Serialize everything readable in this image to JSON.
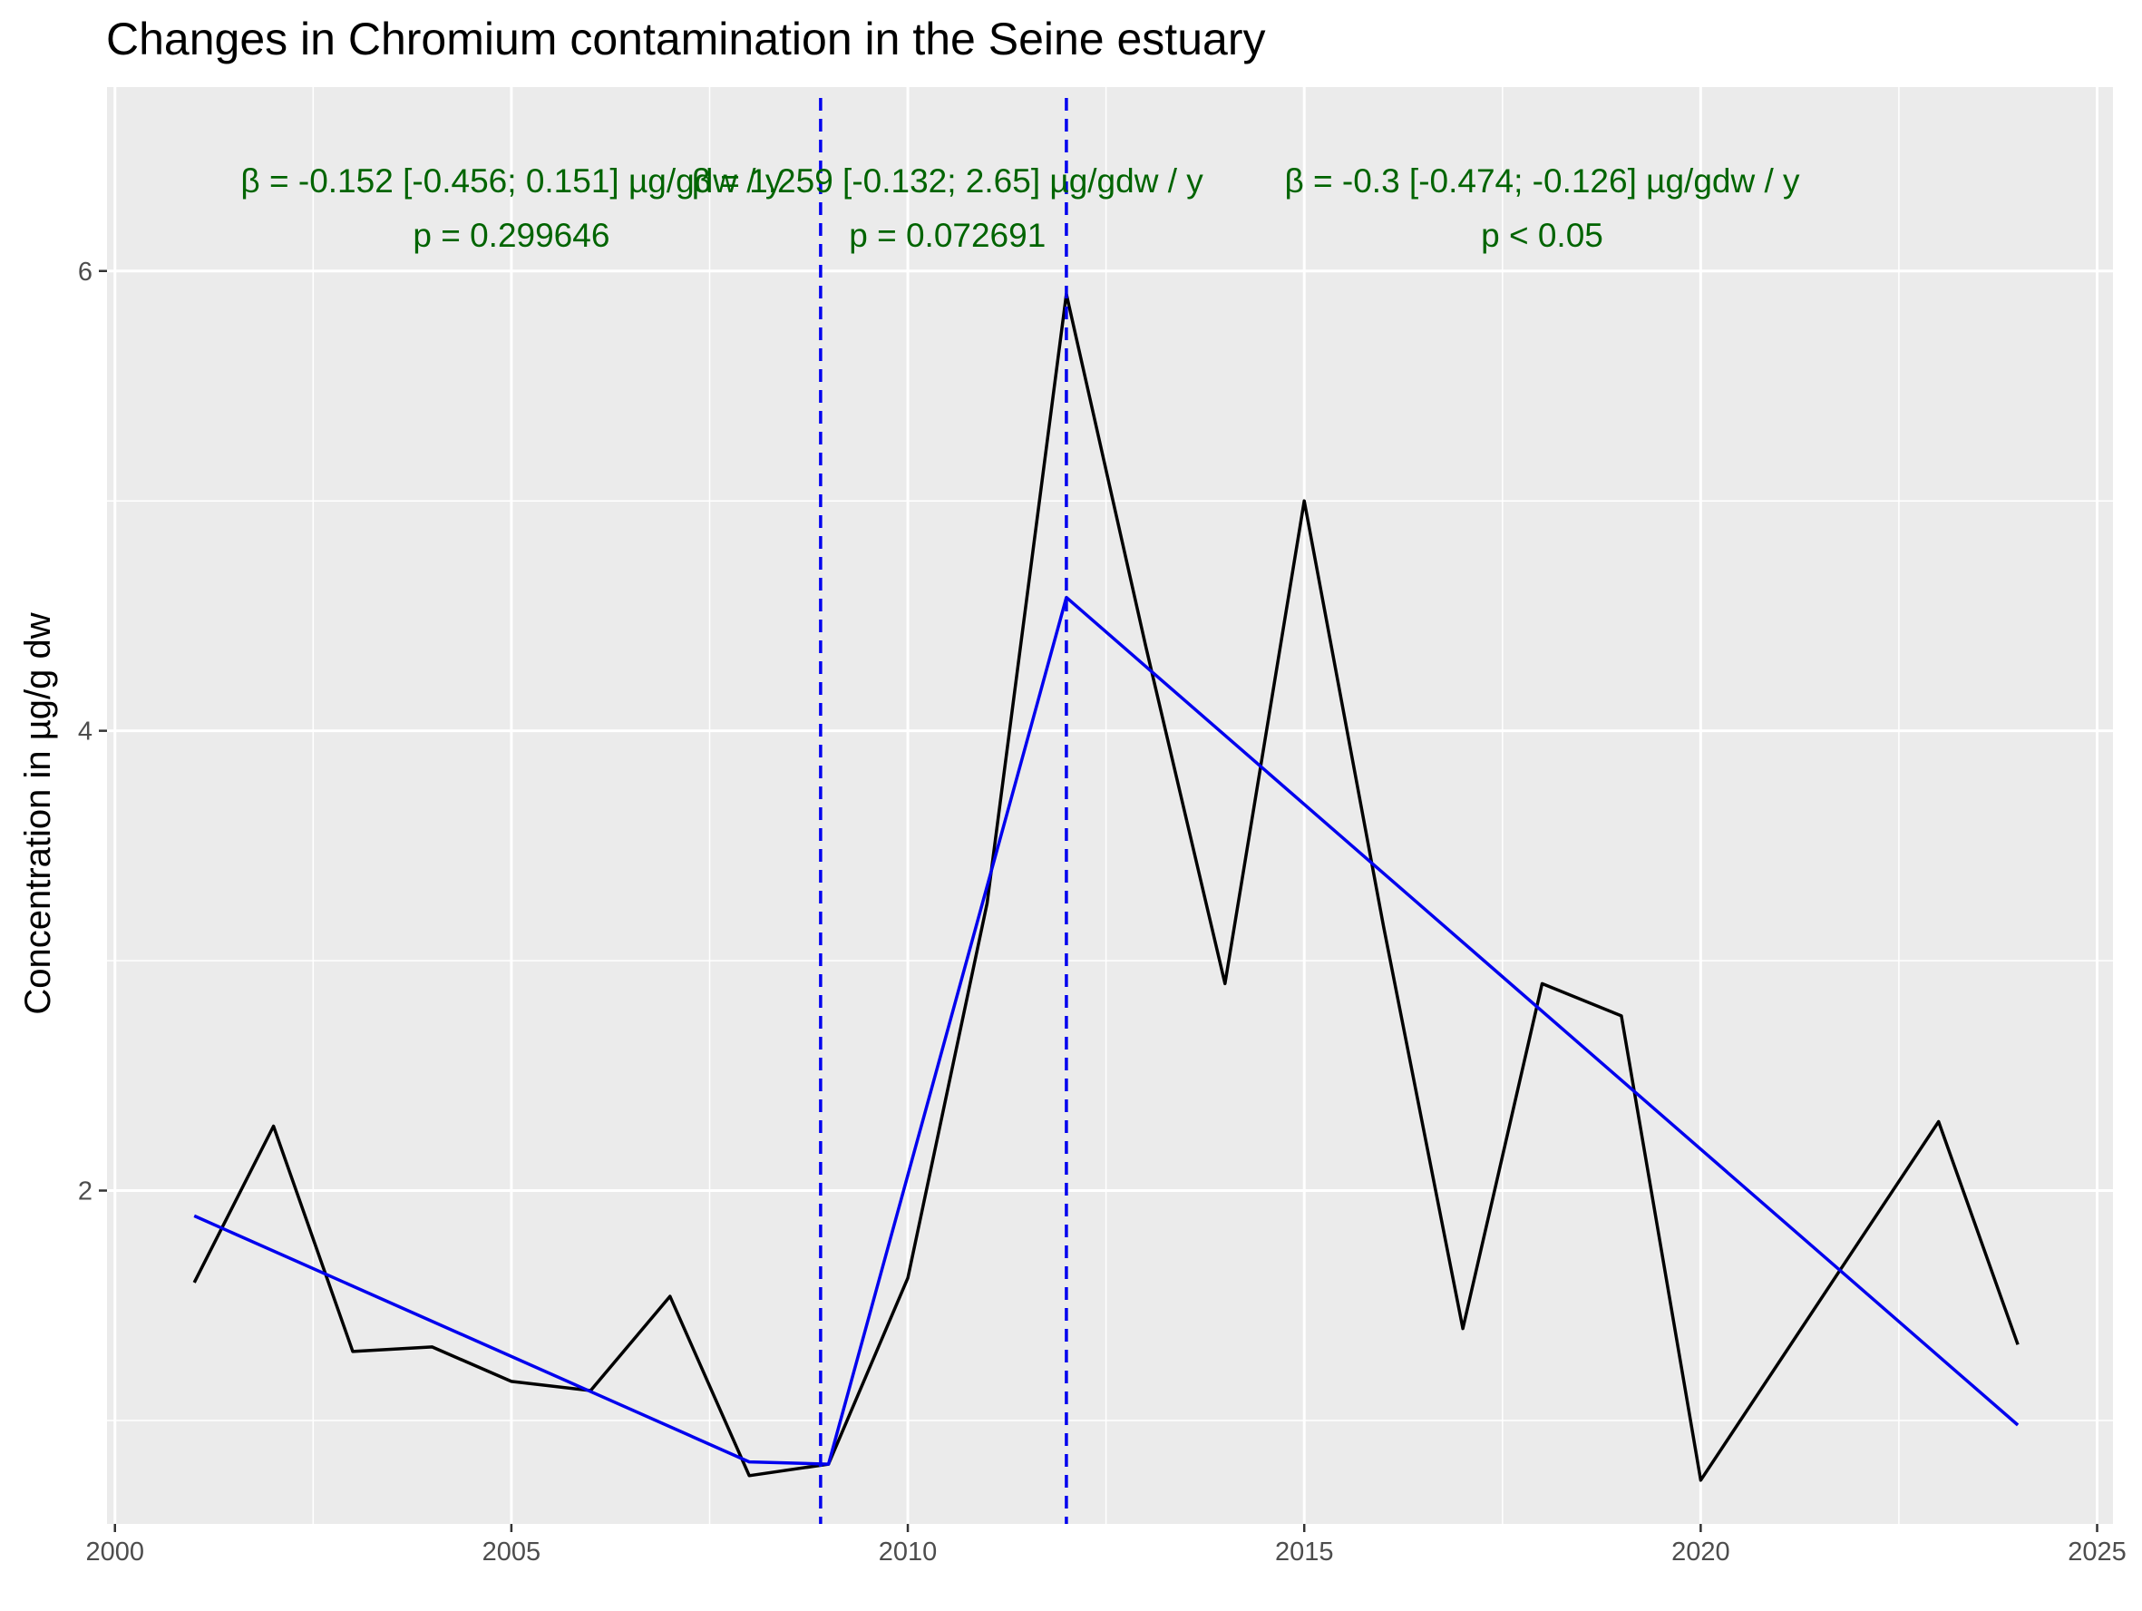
{
  "chart_data": {
    "type": "line",
    "title": "Changes in Chromium contamination in the Seine estuary",
    "xlabel": "",
    "ylabel": "Concentration in µg/g dw",
    "xlim": [
      1999.9,
      2025.2
    ],
    "ylim": [
      0.55,
      6.8
    ],
    "x_ticks": [
      2000,
      2005,
      2010,
      2015,
      2020,
      2025
    ],
    "y_ticks": [
      2,
      4,
      6
    ],
    "grid": true,
    "legend": "none",
    "series": [
      {
        "color": "#000000",
        "x": [
          2001,
          2002,
          2003,
          2004,
          2005,
          2006,
          2007,
          2008,
          2009,
          2010,
          2011,
          2012,
          2013,
          2014,
          2015,
          2016,
          2017,
          2018,
          2019,
          2020,
          2021,
          2022,
          2023,
          2024
        ],
        "y": [
          1.6,
          2.28,
          1.3,
          1.32,
          1.17,
          1.13,
          1.54,
          0.76,
          0.81,
          1.62,
          3.25,
          5.9,
          4.37,
          2.9,
          5.0,
          3.15,
          1.4,
          2.9,
          2.76,
          0.74,
          1.26,
          1.78,
          2.3,
          1.33
        ]
      },
      {
        "color": "#0000ee",
        "x": [
          2001,
          2008,
          2009,
          2012,
          2024
        ],
        "y": [
          1.89,
          0.82,
          0.81,
          4.58,
          0.98
        ]
      }
    ],
    "breakpoints": [
      2008.9,
      2012.0
    ],
    "annotations": [
      {
        "line1": "β = -0.152 [-0.456; 0.151] µg/gdw / y",
        "line2": "p = 0.299646",
        "x": 2005.0,
        "color": "#006400"
      },
      {
        "line1": "β = 1.259 [-0.132; 2.65] µg/gdw / y",
        "line2": "p = 0.072691",
        "x": 2010.5,
        "color": "#006400"
      },
      {
        "line1": "β = -0.3 [-0.474; -0.126] µg/gdw / y",
        "line2": "p < 0.05",
        "x": 2018.0,
        "color": "#006400"
      }
    ]
  }
}
